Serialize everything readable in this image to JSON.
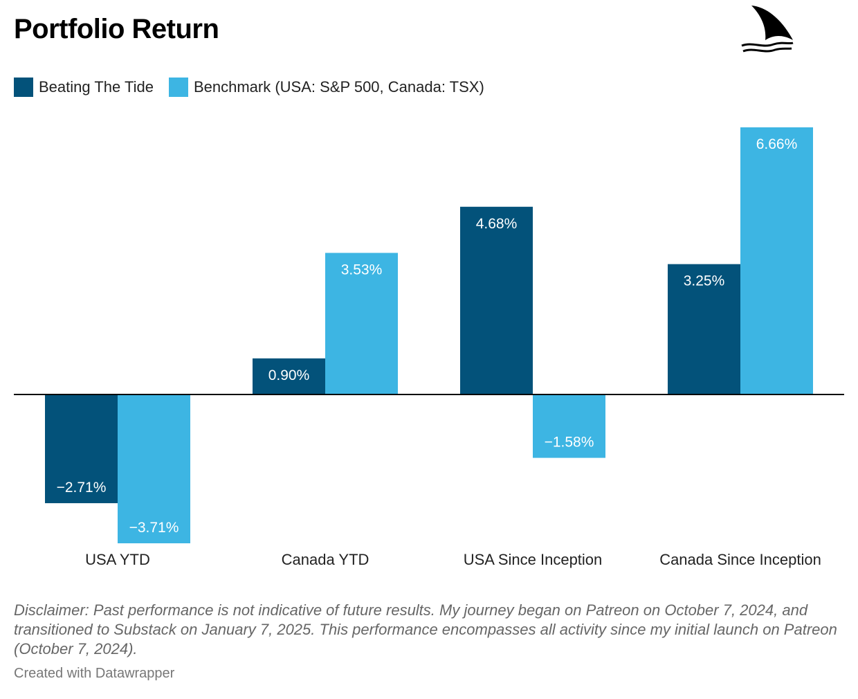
{
  "title": "Portfolio Return",
  "logo": {
    "icon": "shark-fin-icon"
  },
  "legend": [
    {
      "label": "Beating The Tide",
      "color": "#03527a"
    },
    {
      "label": "Benchmark (USA: S&P 500, Canada: TSX)",
      "color": "#3db5e3"
    }
  ],
  "chart_data": {
    "type": "bar",
    "title": "Portfolio Return",
    "categories": [
      "USA YTD",
      "Canada YTD",
      "USA Since Inception",
      "Canada Since Inception"
    ],
    "series": [
      {
        "name": "Beating The Tide",
        "color": "#03527a",
        "values": [
          -2.71,
          0.9,
          4.68,
          3.25
        ],
        "labels": [
          "−2.71%",
          "0.90%",
          "4.68%",
          "3.25%"
        ]
      },
      {
        "name": "Benchmark (USA: S&P 500, Canada: TSX)",
        "color": "#3db5e3",
        "values": [
          -3.71,
          3.53,
          -1.58,
          6.66
        ],
        "labels": [
          "−3.71%",
          "3.53%",
          "−1.58%",
          "6.66%"
        ]
      }
    ],
    "ylim": [
      -3.71,
      6.66
    ],
    "xlabel": "",
    "ylabel": "",
    "grid": false,
    "legend_position": "top-left"
  },
  "disclaimer": "Disclaimer: Past performance is not indicative of future results. My journey began on Patreon on October 7, 2024, and transitioned to Substack on January 7, 2025. This performance encompasses all activity since my initial launch on Patreon (October 7, 2024).",
  "credit": "Created with Datawrapper"
}
